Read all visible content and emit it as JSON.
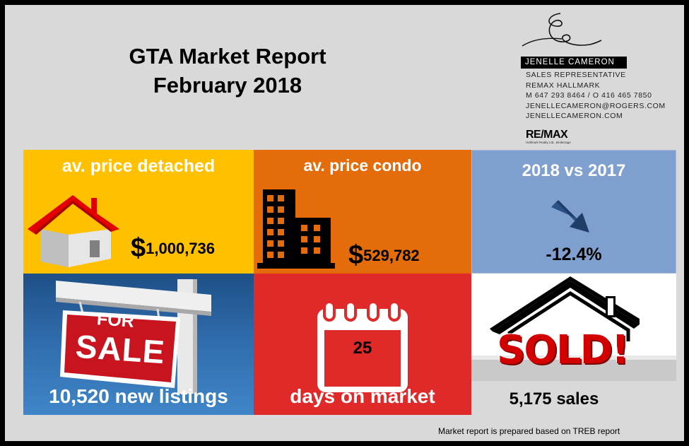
{
  "header": {
    "title_line1": "GTA Market Report",
    "title_line2": "February 2018"
  },
  "agent": {
    "name": "JENELLE CAMERON",
    "lines": [
      "SALES REPRESENTATIVE",
      "REMAX HALLMARK",
      "M 647 293 8464  /  O 416 465 7850",
      "JENELLECAMERON@ROGERS.COM",
      "JENELLECAMERON.COM"
    ],
    "brokerage_logo_text": "RE/MAX",
    "brokerage_logo_subtext": "Hallmark Realty Ltd., Brokerage"
  },
  "tiles": {
    "detached": {
      "heading": "av. price detached",
      "dollar": "$",
      "amount": "1,000,736",
      "color": "#ffc000"
    },
    "condo": {
      "heading": "av. price condo",
      "dollar": "$",
      "amount": "529,782",
      "color": "#e46c0a"
    },
    "yoy": {
      "heading": "2018 vs 2017",
      "change": "-12.4%",
      "trend": "down",
      "color": "#7f9fcf"
    },
    "listings": {
      "sign_line1": "FOR",
      "sign_line2": "SALE",
      "caption": "10,520 new listings",
      "color": "#2f6bab"
    },
    "days": {
      "number": "25",
      "caption": "days on market",
      "color": "#e02a2a"
    },
    "sales": {
      "sold_text": "SOLD!",
      "caption": "5,175 sales"
    }
  },
  "footer": {
    "note": "Market report is prepared based on TREB  report"
  },
  "icons": [
    "house-icon",
    "building-icon",
    "down-arrow-icon",
    "for-sale-sign-icon",
    "calendar-icon",
    "sold-house-icon"
  ]
}
